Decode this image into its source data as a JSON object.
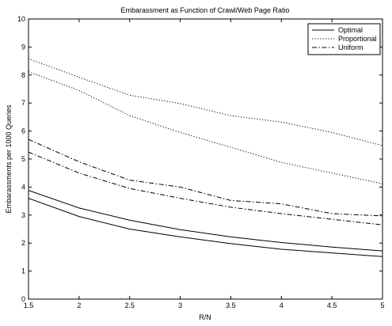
{
  "chart_data": {
    "type": "line",
    "title": "Embarassment as Function of Crawl/Web Page Ratio",
    "xlabel": "R/N",
    "ylabel": "Embarassments per 1000 Queries",
    "xlim": [
      1.5,
      5
    ],
    "ylim": [
      0,
      10
    ],
    "xticks": [
      "1.5",
      "2",
      "2.5",
      "3",
      "3.5",
      "4",
      "4.5",
      "5"
    ],
    "yticks": [
      "0",
      "1",
      "2",
      "3",
      "4",
      "5",
      "6",
      "7",
      "8",
      "9",
      "10"
    ],
    "grid": false,
    "legend_position": "top-right",
    "legend": [
      {
        "label": "Optimal",
        "style": "solid"
      },
      {
        "label": "Proportional",
        "style": "dotted"
      },
      {
        "label": "Uniform",
        "style": "dashdot"
      }
    ],
    "series": [
      {
        "name": "Optimal",
        "style": "solid",
        "x": [
          1.5,
          2,
          2.5,
          3,
          3.5,
          4,
          4.5,
          5
        ],
        "y": [
          3.88,
          3.25,
          2.82,
          2.48,
          2.22,
          2.02,
          1.86,
          1.72
        ]
      },
      {
        "name": "Optimal",
        "style": "solid",
        "x": [
          1.5,
          2,
          2.5,
          3,
          3.5,
          4,
          4.5,
          5
        ],
        "y": [
          3.6,
          2.95,
          2.5,
          2.22,
          1.98,
          1.78,
          1.65,
          1.52
        ]
      },
      {
        "name": "Proportional",
        "style": "dotted",
        "x": [
          1.5,
          2,
          2.5,
          3,
          3.5,
          4,
          4.5,
          5
        ],
        "y": [
          8.58,
          7.92,
          7.28,
          6.98,
          6.55,
          6.32,
          5.95,
          5.48
        ]
      },
      {
        "name": "Proportional",
        "style": "dotted",
        "x": [
          1.5,
          2,
          2.5,
          3,
          3.5,
          4,
          4.5,
          5
        ],
        "y": [
          8.12,
          7.45,
          6.55,
          5.95,
          5.42,
          4.88,
          4.5,
          4.12
        ]
      },
      {
        "name": "Uniform",
        "style": "dashdot",
        "x": [
          1.5,
          2,
          2.5,
          3,
          3.5,
          4,
          4.5,
          5
        ],
        "y": [
          5.7,
          4.9,
          4.25,
          4.0,
          3.52,
          3.4,
          3.05,
          2.97
        ]
      },
      {
        "name": "Uniform",
        "style": "dashdot",
        "x": [
          1.5,
          2,
          2.5,
          3,
          3.5,
          4,
          4.5,
          5
        ],
        "y": [
          5.25,
          4.5,
          3.95,
          3.6,
          3.28,
          3.05,
          2.85,
          2.65
        ]
      }
    ]
  }
}
